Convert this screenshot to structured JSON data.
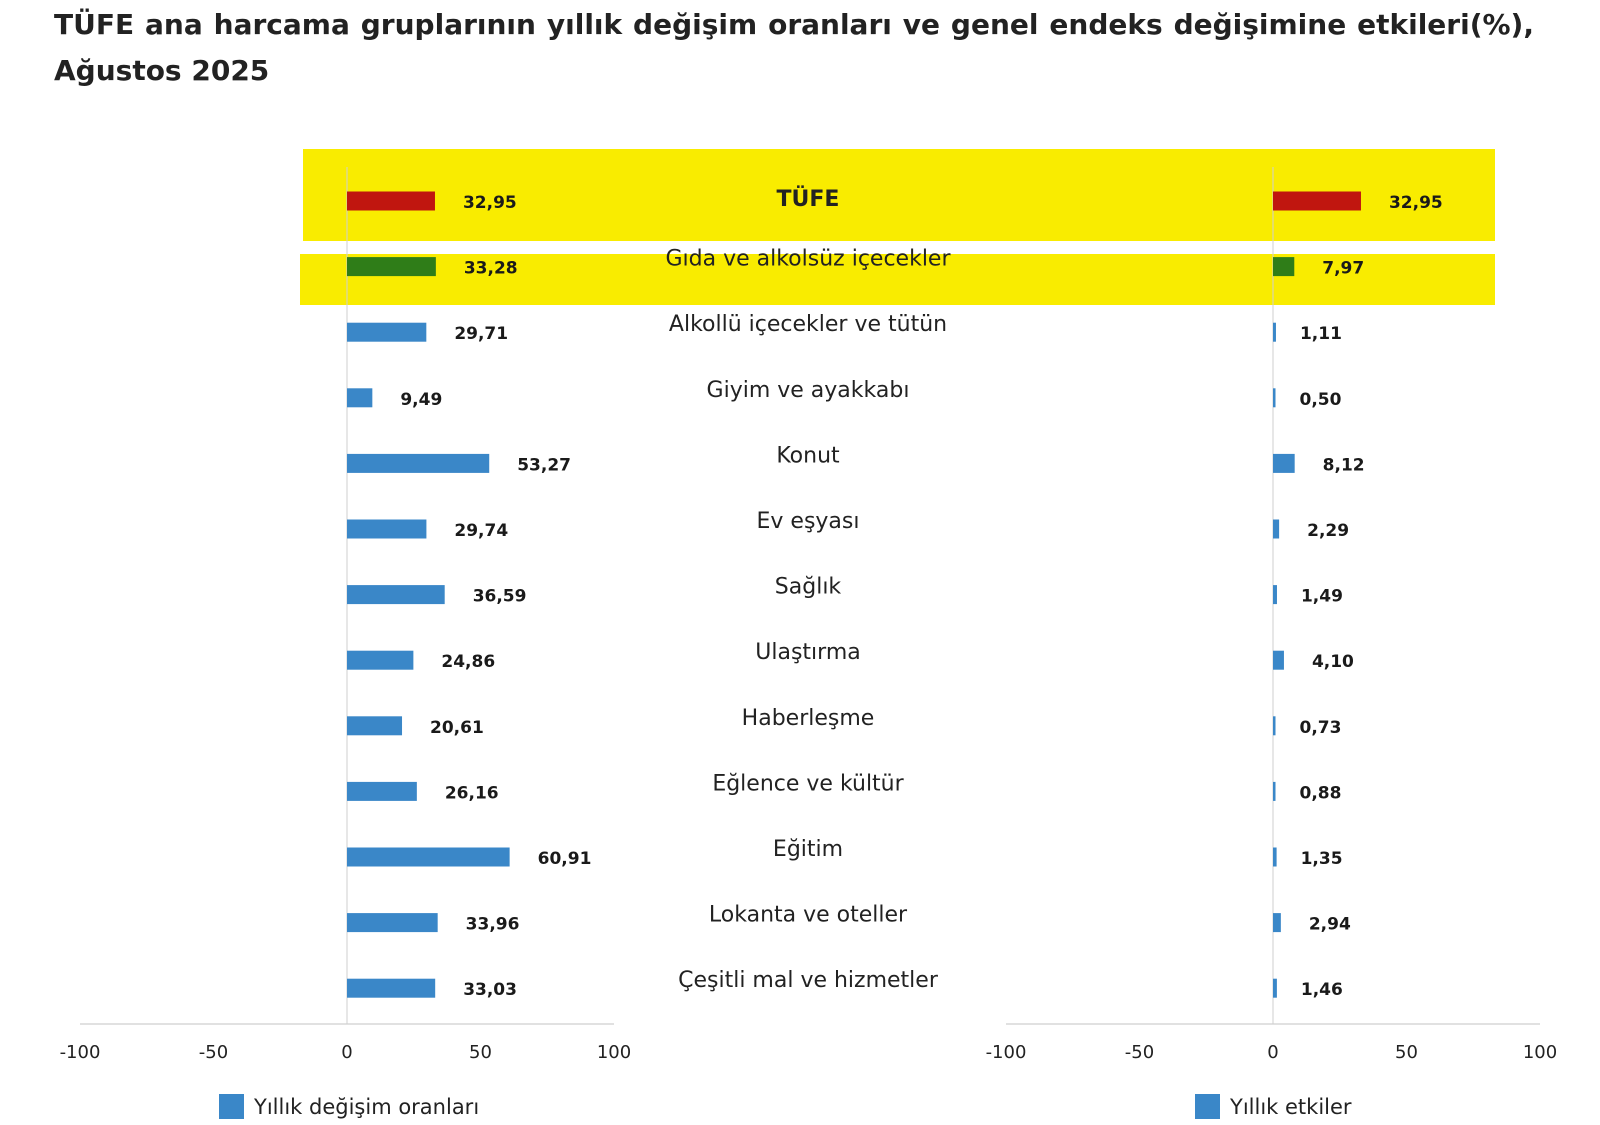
{
  "title": "TÜFE ana harcama gruplarının yıllık değişim oranları ve genel endeks değişimine etkileri(%), Ağustos 2025",
  "colors": {
    "default_bar": "#3a87c8",
    "tufe_bar": "#c0160f",
    "food_bar": "#2f7d18",
    "highlight": "#f9ec00",
    "axis": "#cfcfcf"
  },
  "chart_data": [
    {
      "type": "bar",
      "orientation": "horizontal",
      "legend": "Yıllık değişim oranları",
      "legend_position": "bottom",
      "xlim": [
        -100,
        100
      ],
      "ticks": [
        "-100",
        "-50",
        "0",
        "50",
        "100"
      ],
      "categories": [
        "TÜFE",
        "Gıda ve alkolsüz içecekler",
        "Alkollü içecekler ve tütün",
        "Giyim ve ayakkabı",
        "Konut",
        "Ev eşyası",
        "Sağlık",
        "Ulaştırma",
        "Haberleşme",
        "Eğlence ve kültür",
        "Eğitim",
        "Lokanta ve oteller",
        "Çeşitli mal ve hizmetler"
      ],
      "values": [
        32.95,
        33.28,
        29.71,
        9.49,
        53.27,
        29.74,
        36.59,
        24.86,
        20.61,
        26.16,
        60.91,
        33.96,
        33.03
      ],
      "value_labels": [
        "32,95",
        "33,28",
        "29,71",
        "9,49",
        "53,27",
        "29,74",
        "36,59",
        "24,86",
        "20,61",
        "26,16",
        "60,91",
        "33,96",
        "33,03"
      ]
    },
    {
      "type": "bar",
      "orientation": "horizontal",
      "legend": "Yıllık etkiler",
      "legend_position": "bottom",
      "xlim": [
        -100,
        100
      ],
      "ticks": [
        "-100",
        "-50",
        "0",
        "50",
        "100"
      ],
      "categories": [
        "TÜFE",
        "Gıda ve alkolsüz içecekler",
        "Alkollü içecekler ve tütün",
        "Giyim ve ayakkabı",
        "Konut",
        "Ev eşyası",
        "Sağlık",
        "Ulaştırma",
        "Haberleşme",
        "Eğlence ve kültür",
        "Eğitim",
        "Lokanta ve oteller",
        "Çeşitli mal ve hizmetler"
      ],
      "values": [
        32.95,
        7.97,
        1.11,
        0.5,
        8.12,
        2.29,
        1.49,
        4.1,
        0.73,
        0.88,
        1.35,
        2.94,
        1.46
      ],
      "value_labels": [
        "32,95",
        "7,97",
        "1,11",
        "0,50",
        "8,12",
        "2,29",
        "1,49",
        "4,10",
        "0,73",
        "0,88",
        "1,35",
        "2,94",
        "1,46"
      ]
    }
  ]
}
